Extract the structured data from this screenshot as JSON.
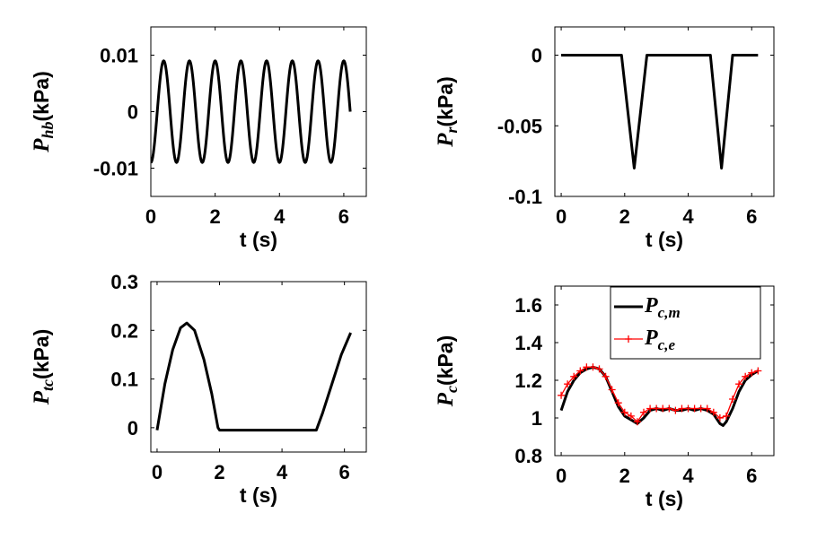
{
  "chart_data": [
    {
      "id": "hb",
      "type": "line",
      "ylabel": {
        "symbol": "P",
        "sub": "hb",
        "unit": "(kPa)"
      },
      "xlabel": "t (s)",
      "xlim": [
        0,
        6.7
      ],
      "ylim": [
        -0.015,
        0.015
      ],
      "xticks": [
        0,
        2,
        4,
        6
      ],
      "yticks": [
        -0.01,
        0,
        0.01
      ],
      "ytick_labels": [
        "-0.01",
        "0",
        "0.01"
      ],
      "series": [
        {
          "name": "P_hb",
          "color": "#000000",
          "formula": "-0.009*cos(2*pi*t/0.8)",
          "t_start": 0,
          "t_end": 6.2,
          "amplitude": 0.009,
          "period": 0.8
        }
      ]
    },
    {
      "id": "r",
      "type": "line",
      "ylabel": {
        "symbol": "P",
        "sub": "r",
        "unit": "(kPa)"
      },
      "xlabel": "t (s)",
      "xlim": [
        -0.2,
        6.7
      ],
      "ylim": [
        -0.1,
        0.02
      ],
      "xticks": [
        0,
        2,
        4,
        6
      ],
      "yticks": [
        -0.1,
        -0.05,
        0
      ],
      "ytick_labels": [
        "-0.1",
        "-0.05",
        "0"
      ],
      "series": [
        {
          "name": "P_r",
          "color": "#000000",
          "x": [
            0,
            1.9,
            2.3,
            2.7,
            4.7,
            5.05,
            5.4,
            6.2
          ],
          "y": [
            0,
            0,
            -0.08,
            0,
            0,
            -0.08,
            0,
            0
          ]
        }
      ]
    },
    {
      "id": "tc",
      "type": "line",
      "ylabel": {
        "symbol": "P",
        "sub": "tc",
        "unit": "(kPa)"
      },
      "xlabel": "t (s)",
      "xlim": [
        -0.2,
        6.7
      ],
      "ylim": [
        -0.05,
        0.3
      ],
      "xticks": [
        0,
        2,
        4,
        6
      ],
      "yticks": [
        0,
        0.1,
        0.2,
        0.3
      ],
      "ytick_labels": [
        "0",
        "0.1",
        "0.2",
        "0.3"
      ],
      "series": [
        {
          "name": "P_tc",
          "color": "#000000",
          "x": [
            0,
            0.25,
            0.5,
            0.75,
            0.95,
            1.2,
            1.5,
            1.75,
            1.95,
            2.0,
            5.1,
            5.3,
            5.6,
            5.9,
            6.2
          ],
          "y": [
            -0.005,
            0.09,
            0.16,
            0.205,
            0.215,
            0.2,
            0.14,
            0.07,
            0.0,
            -0.005,
            -0.005,
            0.03,
            0.09,
            0.15,
            0.195
          ]
        }
      ]
    },
    {
      "id": "c",
      "type": "line",
      "ylabel": {
        "symbol": "P",
        "sub": "c",
        "unit": "(kPa)"
      },
      "xlabel": "t (s)",
      "xlim": [
        -0.2,
        6.7
      ],
      "ylim": [
        0.8,
        1.7
      ],
      "xticks": [
        0,
        2,
        4,
        6
      ],
      "yticks": [
        0.8,
        1,
        1.2,
        1.4,
        1.6
      ],
      "ytick_labels": [
        "0.8",
        "1",
        "1.2",
        "1.4",
        "1.6"
      ],
      "legend": {
        "position": "top",
        "entries": [
          {
            "symbol": "P",
            "sub": "c,m"
          },
          {
            "symbol": "P",
            "sub": "c,e"
          }
        ]
      },
      "series": [
        {
          "name": "P_c,m",
          "color": "#000000",
          "marker": "none",
          "x": [
            0,
            0.2,
            0.4,
            0.6,
            0.8,
            1.0,
            1.2,
            1.4,
            1.6,
            1.8,
            2.0,
            2.2,
            2.4,
            2.6,
            2.8,
            3.0,
            3.2,
            3.4,
            3.6,
            3.8,
            4.0,
            4.2,
            4.4,
            4.6,
            4.8,
            5.0,
            5.1,
            5.2,
            5.4,
            5.6,
            5.8,
            6.0,
            6.2
          ],
          "y": [
            1.04,
            1.14,
            1.2,
            1.24,
            1.26,
            1.27,
            1.26,
            1.22,
            1.14,
            1.06,
            1.01,
            0.99,
            0.97,
            1.0,
            1.04,
            1.05,
            1.04,
            1.05,
            1.04,
            1.04,
            1.05,
            1.04,
            1.05,
            1.04,
            1.02,
            0.97,
            0.96,
            0.98,
            1.05,
            1.14,
            1.2,
            1.23,
            1.25
          ]
        },
        {
          "name": "P_c,e",
          "color": "#ff0000",
          "marker": "+",
          "x": [
            0,
            0.2,
            0.4,
            0.6,
            0.8,
            1.0,
            1.2,
            1.4,
            1.6,
            1.8,
            2.0,
            2.2,
            2.4,
            2.6,
            2.8,
            3.0,
            3.2,
            3.4,
            3.6,
            3.8,
            4.0,
            4.2,
            4.4,
            4.6,
            4.8,
            5.0,
            5.2,
            5.4,
            5.6,
            5.8,
            6.0,
            6.2
          ],
          "y": [
            1.12,
            1.18,
            1.22,
            1.25,
            1.27,
            1.27,
            1.26,
            1.22,
            1.15,
            1.08,
            1.03,
            1.01,
            0.98,
            1.03,
            1.05,
            1.05,
            1.05,
            1.05,
            1.04,
            1.05,
            1.05,
            1.05,
            1.05,
            1.05,
            1.03,
            1.0,
            1.01,
            1.1,
            1.18,
            1.22,
            1.24,
            1.25
          ]
        }
      ]
    }
  ]
}
